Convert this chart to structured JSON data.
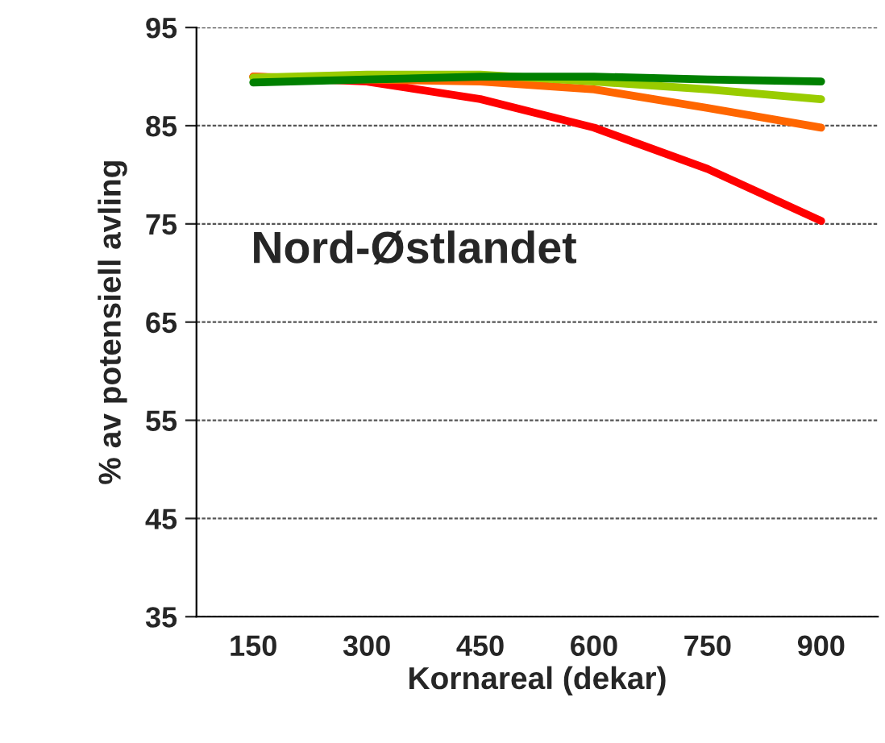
{
  "chart_data": {
    "type": "line",
    "xlabel": "Kornareal (dekar)",
    "ylabel": "% av potensiell avling",
    "categories": [
      "150",
      "300",
      "450",
      "600",
      "750",
      "900"
    ],
    "series": [
      {
        "color": "#ff0000",
        "values": [
          90.0,
          89.5,
          87.7,
          84.8,
          80.6,
          75.3
        ]
      },
      {
        "color": "#ff6600",
        "values": [
          90.0,
          89.7,
          89.5,
          88.7,
          86.8,
          84.8
        ]
      },
      {
        "color": "#99cc00",
        "values": [
          89.9,
          90.2,
          90.2,
          89.5,
          88.7,
          87.7
        ]
      },
      {
        "color": "#008000",
        "values": [
          89.4,
          89.7,
          90.0,
          90.0,
          89.7,
          89.5
        ]
      }
    ],
    "ylim": [
      35,
      95
    ],
    "yticks": [
      35,
      45,
      55,
      65,
      75,
      85,
      95
    ],
    "grid": "y",
    "marker": "none",
    "line_style": "solid",
    "annotations": [
      "Nord-Østlandet"
    ]
  }
}
